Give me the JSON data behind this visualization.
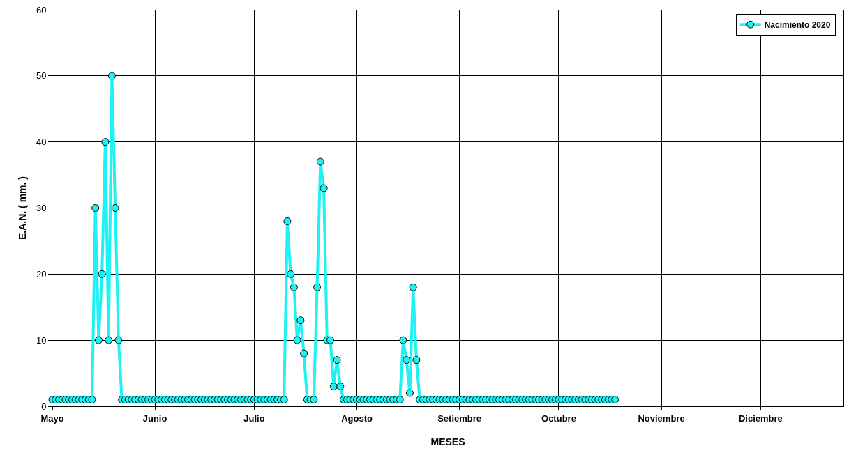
{
  "chart_data": {
    "type": "line",
    "xlabel": "MESES",
    "ylabel": "E.A.N. ( mm. )",
    "x": [
      "2020-05-01",
      "2020-05-02",
      "2020-05-03",
      "2020-05-04",
      "2020-05-05",
      "2020-05-06",
      "2020-05-07",
      "2020-05-08",
      "2020-05-09",
      "2020-05-10",
      "2020-05-11",
      "2020-05-12",
      "2020-05-13",
      "2020-05-14",
      "2020-05-15",
      "2020-05-16",
      "2020-05-17",
      "2020-05-18",
      "2020-05-19",
      "2020-05-20",
      "2020-05-21",
      "2020-05-22",
      "2020-05-23",
      "2020-05-24",
      "2020-05-25",
      "2020-05-26",
      "2020-05-27",
      "2020-05-28",
      "2020-05-29",
      "2020-05-30",
      "2020-05-31",
      "2020-06-01",
      "2020-06-02",
      "2020-06-03",
      "2020-06-04",
      "2020-06-05",
      "2020-06-06",
      "2020-06-07",
      "2020-06-08",
      "2020-06-09",
      "2020-06-10",
      "2020-06-11",
      "2020-06-12",
      "2020-06-13",
      "2020-06-14",
      "2020-06-15",
      "2020-06-16",
      "2020-06-17",
      "2020-06-18",
      "2020-06-19",
      "2020-06-20",
      "2020-06-21",
      "2020-06-22",
      "2020-06-23",
      "2020-06-24",
      "2020-06-25",
      "2020-06-26",
      "2020-06-27",
      "2020-06-28",
      "2020-06-29",
      "2020-06-30",
      "2020-07-01",
      "2020-07-02",
      "2020-07-03",
      "2020-07-04",
      "2020-07-05",
      "2020-07-06",
      "2020-07-07",
      "2020-07-08",
      "2020-07-09",
      "2020-07-10",
      "2020-07-11",
      "2020-07-12",
      "2020-07-13",
      "2020-07-14",
      "2020-07-15",
      "2020-07-16",
      "2020-07-17",
      "2020-07-18",
      "2020-07-19",
      "2020-07-20",
      "2020-07-21",
      "2020-07-22",
      "2020-07-23",
      "2020-07-24",
      "2020-07-25",
      "2020-07-26",
      "2020-07-27",
      "2020-07-28",
      "2020-07-29",
      "2020-07-30",
      "2020-07-31",
      "2020-08-01",
      "2020-08-02",
      "2020-08-03",
      "2020-08-04",
      "2020-08-05",
      "2020-08-06",
      "2020-08-07",
      "2020-08-08",
      "2020-08-09",
      "2020-08-10",
      "2020-08-11",
      "2020-08-12",
      "2020-08-13",
      "2020-08-14",
      "2020-08-15",
      "2020-08-16",
      "2020-08-17",
      "2020-08-18",
      "2020-08-19",
      "2020-08-20",
      "2020-08-21",
      "2020-08-22",
      "2020-08-23",
      "2020-08-24",
      "2020-08-25",
      "2020-08-26",
      "2020-08-27",
      "2020-08-28",
      "2020-08-29",
      "2020-08-30",
      "2020-08-31",
      "2020-09-01",
      "2020-09-02",
      "2020-09-03",
      "2020-09-04",
      "2020-09-05",
      "2020-09-06",
      "2020-09-07",
      "2020-09-08",
      "2020-09-09",
      "2020-09-10",
      "2020-09-11",
      "2020-09-12",
      "2020-09-13",
      "2020-09-14",
      "2020-09-15",
      "2020-09-16",
      "2020-09-17",
      "2020-09-18",
      "2020-09-19",
      "2020-09-20",
      "2020-09-21",
      "2020-09-22",
      "2020-09-23",
      "2020-09-24",
      "2020-09-25",
      "2020-09-26",
      "2020-09-27",
      "2020-09-28",
      "2020-09-29",
      "2020-09-30",
      "2020-10-01",
      "2020-10-02",
      "2020-10-03",
      "2020-10-04",
      "2020-10-05",
      "2020-10-06",
      "2020-10-07",
      "2020-10-08",
      "2020-10-09",
      "2020-10-10",
      "2020-10-11",
      "2020-10-12",
      "2020-10-13",
      "2020-10-14",
      "2020-10-15",
      "2020-10-16",
      "2020-10-17",
      "2020-10-18"
    ],
    "series": [
      {
        "name": "Nacimiento 2020",
        "color": "#1ef2f2",
        "values": [
          1,
          1,
          1,
          1,
          1,
          1,
          1,
          1,
          1,
          1,
          1,
          1,
          1,
          30,
          10,
          20,
          40,
          10,
          50,
          30,
          10,
          1,
          1,
          1,
          1,
          1,
          1,
          1,
          1,
          1,
          1,
          1,
          1,
          1,
          1,
          1,
          1,
          1,
          1,
          1,
          1,
          1,
          1,
          1,
          1,
          1,
          1,
          1,
          1,
          1,
          1,
          1,
          1,
          1,
          1,
          1,
          1,
          1,
          1,
          1,
          1,
          1,
          1,
          1,
          1,
          1,
          1,
          1,
          1,
          1,
          1,
          28,
          20,
          18,
          10,
          13,
          8,
          1,
          1,
          1,
          18,
          37,
          33,
          10,
          10,
          3,
          7,
          3,
          1,
          1,
          1,
          1,
          1,
          1,
          1,
          1,
          1,
          1,
          1,
          1,
          1,
          1,
          1,
          1,
          1,
          1,
          10,
          7,
          2,
          18,
          7,
          1,
          1,
          1,
          1,
          1,
          1,
          1,
          1,
          1,
          1,
          1,
          1,
          1,
          1,
          1,
          1,
          1,
          1,
          1,
          1,
          1,
          1,
          1,
          1,
          1,
          1,
          1,
          1,
          1,
          1,
          1,
          1,
          1,
          1,
          1,
          1,
          1,
          1,
          1,
          1,
          1,
          1,
          1,
          1,
          1,
          1,
          1,
          1,
          1,
          1,
          1,
          1,
          1,
          1,
          1,
          1,
          1,
          1,
          1,
          1
        ]
      }
    ],
    "xlim": [
      "2020-05-01",
      "2020-12-26"
    ],
    "xticks": [
      {
        "value": "2020-05-01",
        "label": "Mayo"
      },
      {
        "value": "2020-06-01",
        "label": "Junio"
      },
      {
        "value": "2020-07-01",
        "label": "Julio"
      },
      {
        "value": "2020-08-01",
        "label": "Agosto"
      },
      {
        "value": "2020-09-01",
        "label": "Setiembre"
      },
      {
        "value": "2020-10-01",
        "label": "Octubre"
      },
      {
        "value": "2020-11-01",
        "label": "Noviembre"
      },
      {
        "value": "2020-12-01",
        "label": "Diciembre"
      }
    ],
    "ylim": [
      0,
      60
    ],
    "yticks": [
      0,
      10,
      20,
      30,
      40,
      50,
      60
    ],
    "grid": true,
    "legend": "top right",
    "marker": "circle",
    "line_style": "solid"
  }
}
